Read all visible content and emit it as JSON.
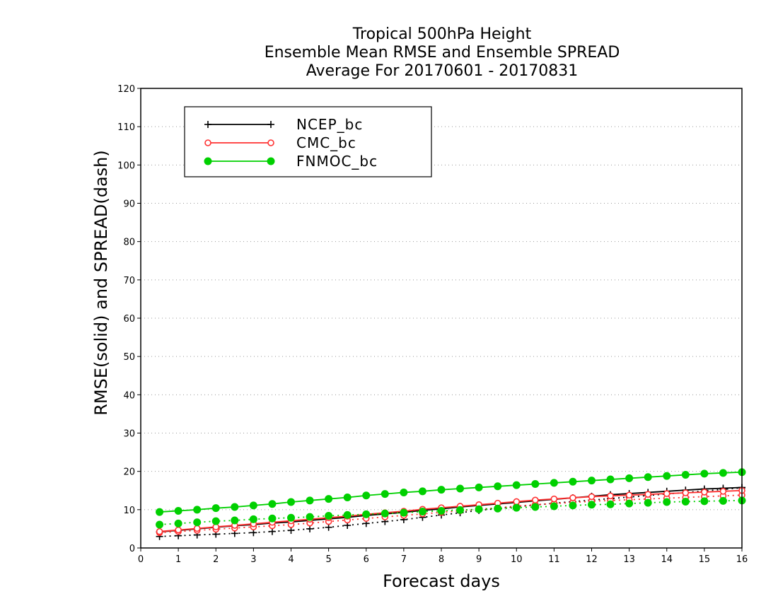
{
  "chart_data": {
    "type": "line",
    "title": [
      "Tropical 500hPa Height",
      "Ensemble Mean RMSE and Ensemble SPREAD",
      "Average For 20170601 - 20170831"
    ],
    "xlabel": "Forecast days",
    "ylabel": "RMSE(solid) and SPREAD(dash)",
    "xlim": [
      0,
      16
    ],
    "ylim": [
      0,
      120
    ],
    "xticks": [
      "0",
      "1",
      "2",
      "3",
      "4",
      "5",
      "6",
      "7",
      "8",
      "9",
      "10",
      "11",
      "12",
      "13",
      "14",
      "15",
      "16"
    ],
    "yticks": [
      "0",
      "10",
      "20",
      "30",
      "40",
      "50",
      "60",
      "70",
      "80",
      "90",
      "100",
      "110",
      "120"
    ],
    "grid": "horizontal dotted",
    "legend_position": "top-left",
    "x": [
      0.5,
      1,
      1.5,
      2,
      2.5,
      3,
      3.5,
      4,
      4.5,
      5,
      5.5,
      6,
      6.5,
      7,
      7.5,
      8,
      8.5,
      9,
      9.5,
      10,
      10.5,
      11,
      11.5,
      12,
      12.5,
      13,
      13.5,
      14,
      14.5,
      15,
      15.5,
      16
    ],
    "series": [
      {
        "name": "NCEP_bc",
        "color": "#000000",
        "marker": "plus",
        "rmse": [
          4.2,
          4.6,
          5.0,
          5.4,
          5.8,
          6.1,
          6.5,
          6.8,
          7.2,
          7.6,
          8.0,
          8.5,
          8.9,
          9.3,
          9.8,
          10.2,
          10.7,
          11.1,
          11.5,
          11.9,
          12.3,
          12.7,
          13.1,
          13.5,
          13.9,
          14.2,
          14.5,
          14.8,
          15.1,
          15.4,
          15.6,
          15.8
        ],
        "spread": [
          3.0,
          3.2,
          3.4,
          3.6,
          3.8,
          4.0,
          4.3,
          4.6,
          5.0,
          5.4,
          5.9,
          6.4,
          6.9,
          7.4,
          8.0,
          8.6,
          9.2,
          9.8,
          10.3,
          10.8,
          11.2,
          11.7,
          12.1,
          12.5,
          12.9,
          13.3,
          13.7,
          14.1,
          14.5,
          14.9,
          15.3,
          15.7
        ]
      },
      {
        "name": "CMC_bc",
        "color": "#ff3030",
        "marker": "open-circle",
        "rmse": [
          4.3,
          4.7,
          5.1,
          5.5,
          5.9,
          6.3,
          6.7,
          7.1,
          7.5,
          7.9,
          8.3,
          8.8,
          9.2,
          9.6,
          10.1,
          10.5,
          10.9,
          11.3,
          11.7,
          12.1,
          12.5,
          12.8,
          13.1,
          13.4,
          13.6,
          13.8,
          14.0,
          14.2,
          14.4,
          14.6,
          14.8,
          15.0
        ],
        "spread": [
          4.0,
          4.3,
          4.6,
          4.9,
          5.2,
          5.5,
          5.8,
          6.1,
          6.5,
          6.9,
          7.3,
          7.7,
          8.1,
          8.5,
          8.9,
          9.3,
          9.7,
          10.1,
          10.5,
          10.9,
          11.3,
          11.6,
          11.9,
          12.2,
          12.4,
          12.6,
          12.8,
          13.0,
          13.2,
          13.4,
          13.6,
          13.8
        ]
      },
      {
        "name": "FNMOC_bc",
        "color": "#00d000",
        "marker": "filled-circle",
        "rmse": [
          9.4,
          9.7,
          10.0,
          10.4,
          10.7,
          11.1,
          11.5,
          12.0,
          12.4,
          12.8,
          13.2,
          13.7,
          14.1,
          14.5,
          14.8,
          15.2,
          15.5,
          15.8,
          16.1,
          16.4,
          16.7,
          17.0,
          17.3,
          17.6,
          17.9,
          18.2,
          18.5,
          18.8,
          19.1,
          19.4,
          19.6,
          19.8
        ],
        "spread": [
          6.1,
          6.4,
          6.7,
          7.0,
          7.2,
          7.5,
          7.7,
          7.9,
          8.1,
          8.4,
          8.6,
          8.8,
          9.0,
          9.2,
          9.5,
          9.7,
          9.9,
          10.1,
          10.3,
          10.5,
          10.7,
          10.9,
          11.1,
          11.3,
          11.4,
          11.6,
          11.8,
          12.0,
          12.1,
          12.2,
          12.3,
          12.4
        ]
      }
    ]
  }
}
